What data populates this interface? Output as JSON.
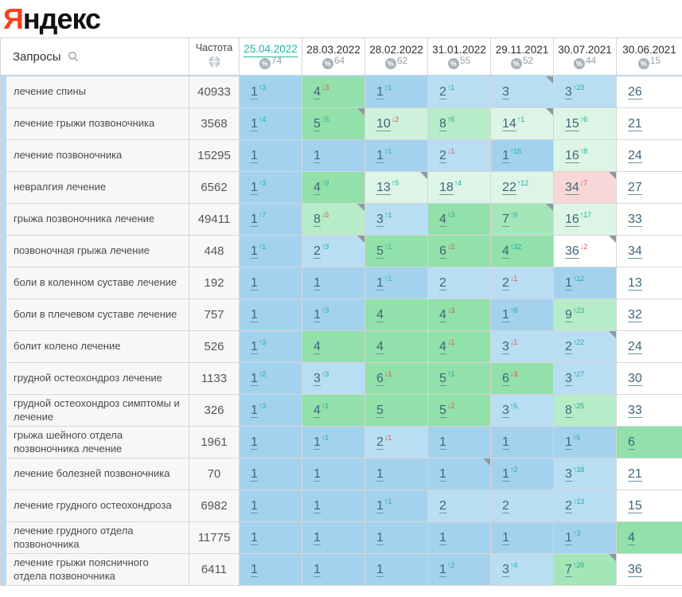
{
  "logo": {
    "first_letter": "Я",
    "rest": "ндекс"
  },
  "colors": {
    "logo_red": "#fc3f1d",
    "accent_teal": "#1fb5a1",
    "delta_up": "#1db3a2",
    "delta_down": "#e0584e",
    "cell_backgrounds": {
      "b1": "#a3d2ee",
      "b2": "#b9def4",
      "g4": "#92e0aa",
      "g7": "#a5e6b8",
      "g8": "#b7ecc8",
      "m10": "#cff1db",
      "m": "#ddf5e6",
      "pk": "#f8d8d6",
      "w": "#ffffff"
    }
  },
  "table": {
    "queries_header": "Запросы",
    "frequency_header": "Частота",
    "columns": [
      {
        "date": "25.04.2022",
        "visibility": "74",
        "selected": true
      },
      {
        "date": "28.03.2022",
        "visibility": "64",
        "selected": false
      },
      {
        "date": "28.02.2022",
        "visibility": "62",
        "selected": false
      },
      {
        "date": "31.01.2022",
        "visibility": "55",
        "selected": false
      },
      {
        "date": "29.11.2021",
        "visibility": "52",
        "selected": false
      },
      {
        "date": "30.07.2021",
        "visibility": "44",
        "selected": false
      },
      {
        "date": "30.06.2021",
        "visibility": "15",
        "selected": false
      }
    ],
    "rows": [
      {
        "keyword": "лечение спины",
        "frequency": "40933",
        "cells": [
          {
            "pos": "1",
            "delta": "3",
            "dir": "up",
            "bg": "b1"
          },
          {
            "pos": "4",
            "delta": "3",
            "dir": "down",
            "bg": "g4"
          },
          {
            "pos": "1",
            "delta": "1",
            "dir": "up",
            "bg": "b1"
          },
          {
            "pos": "2",
            "delta": "1",
            "dir": "up",
            "bg": "b2"
          },
          {
            "pos": "3",
            "delta": "",
            "dir": "",
            "bg": "b2",
            "flag": true
          },
          {
            "pos": "3",
            "delta": "23",
            "dir": "up",
            "bg": "b2"
          },
          {
            "pos": "26",
            "delta": "",
            "dir": "",
            "bg": "w"
          }
        ]
      },
      {
        "keyword": "лечение грыжи позвоночника",
        "frequency": "3568",
        "cells": [
          {
            "pos": "1",
            "delta": "4",
            "dir": "up",
            "bg": "b1"
          },
          {
            "pos": "5",
            "delta": "5",
            "dir": "up",
            "bg": "g4",
            "flag": true
          },
          {
            "pos": "10",
            "delta": "2",
            "dir": "down",
            "bg": "m10"
          },
          {
            "pos": "8",
            "delta": "6",
            "dir": "up",
            "bg": "g8"
          },
          {
            "pos": "14",
            "delta": "1",
            "dir": "up",
            "bg": "m",
            "flag": true
          },
          {
            "pos": "15",
            "delta": "6",
            "dir": "up",
            "bg": "m"
          },
          {
            "pos": "21",
            "delta": "",
            "dir": "",
            "bg": "w"
          }
        ]
      },
      {
        "keyword": "лечение позвоночника",
        "frequency": "15295",
        "cells": [
          {
            "pos": "1",
            "delta": "",
            "dir": "",
            "bg": "b1"
          },
          {
            "pos": "1",
            "delta": "",
            "dir": "",
            "bg": "b1"
          },
          {
            "pos": "1",
            "delta": "1",
            "dir": "up",
            "bg": "b1"
          },
          {
            "pos": "2",
            "delta": "1",
            "dir": "down",
            "bg": "b2"
          },
          {
            "pos": "1",
            "delta": "15",
            "dir": "up",
            "bg": "b1"
          },
          {
            "pos": "16",
            "delta": "8",
            "dir": "up",
            "bg": "m"
          },
          {
            "pos": "24",
            "delta": "",
            "dir": "",
            "bg": "w"
          }
        ]
      },
      {
        "keyword": "невралгия лечение",
        "frequency": "6562",
        "cells": [
          {
            "pos": "1",
            "delta": "3",
            "dir": "up",
            "bg": "b1"
          },
          {
            "pos": "4",
            "delta": "9",
            "dir": "up",
            "bg": "g4"
          },
          {
            "pos": "13",
            "delta": "5",
            "dir": "up",
            "bg": "m",
            "flag": true
          },
          {
            "pos": "18",
            "delta": "4",
            "dir": "up",
            "bg": "m"
          },
          {
            "pos": "22",
            "delta": "12",
            "dir": "up",
            "bg": "m"
          },
          {
            "pos": "34",
            "delta": "7",
            "dir": "down",
            "bg": "pk",
            "flag": true
          },
          {
            "pos": "27",
            "delta": "",
            "dir": "",
            "bg": "w"
          }
        ]
      },
      {
        "keyword": "грыжа позвоночника лечение",
        "frequency": "49411",
        "cells": [
          {
            "pos": "1",
            "delta": "7",
            "dir": "up",
            "bg": "b1"
          },
          {
            "pos": "8",
            "delta": "5",
            "dir": "down",
            "bg": "g8",
            "flag": true
          },
          {
            "pos": "3",
            "delta": "1",
            "dir": "up",
            "bg": "b2"
          },
          {
            "pos": "4",
            "delta": "3",
            "dir": "up",
            "bg": "g4"
          },
          {
            "pos": "7",
            "delta": "9",
            "dir": "up",
            "bg": "g7",
            "flag": true
          },
          {
            "pos": "16",
            "delta": "17",
            "dir": "up",
            "bg": "m"
          },
          {
            "pos": "33",
            "delta": "",
            "dir": "",
            "bg": "w"
          }
        ]
      },
      {
        "keyword": "позвоночная грыжа лечение",
        "frequency": "448",
        "cells": [
          {
            "pos": "1",
            "delta": "1",
            "dir": "up",
            "bg": "b1"
          },
          {
            "pos": "2",
            "delta": "3",
            "dir": "up",
            "bg": "b2",
            "flag": true
          },
          {
            "pos": "5",
            "delta": "1",
            "dir": "up",
            "bg": "g4"
          },
          {
            "pos": "6",
            "delta": "2",
            "dir": "down",
            "bg": "g4"
          },
          {
            "pos": "4",
            "delta": "32",
            "dir": "up",
            "bg": "g4"
          },
          {
            "pos": "36",
            "delta": "2",
            "dir": "down",
            "bg": "w",
            "flag": true
          },
          {
            "pos": "34",
            "delta": "",
            "dir": "",
            "bg": "w"
          }
        ]
      },
      {
        "keyword": "боли в коленном суставе лечение",
        "frequency": "192",
        "cells": [
          {
            "pos": "1",
            "delta": "",
            "dir": "",
            "bg": "b1"
          },
          {
            "pos": "1",
            "delta": "",
            "dir": "",
            "bg": "b1"
          },
          {
            "pos": "1",
            "delta": "1",
            "dir": "up",
            "bg": "b1"
          },
          {
            "pos": "2",
            "delta": "",
            "dir": "",
            "bg": "b2"
          },
          {
            "pos": "2",
            "delta": "1",
            "dir": "down",
            "bg": "b2"
          },
          {
            "pos": "1",
            "delta": "12",
            "dir": "up",
            "bg": "b1"
          },
          {
            "pos": "13",
            "delta": "",
            "dir": "",
            "bg": "w"
          }
        ]
      },
      {
        "keyword": "боли в плечевом суставе лечение",
        "frequency": "757",
        "cells": [
          {
            "pos": "1",
            "delta": "",
            "dir": "",
            "bg": "b1"
          },
          {
            "pos": "1",
            "delta": "3",
            "dir": "up",
            "bg": "b1"
          },
          {
            "pos": "4",
            "delta": "",
            "dir": "",
            "bg": "g4"
          },
          {
            "pos": "4",
            "delta": "3",
            "dir": "down",
            "bg": "g4"
          },
          {
            "pos": "1",
            "delta": "8",
            "dir": "up",
            "bg": "b1"
          },
          {
            "pos": "9",
            "delta": "23",
            "dir": "up",
            "bg": "g8"
          },
          {
            "pos": "32",
            "delta": "",
            "dir": "",
            "bg": "w"
          }
        ]
      },
      {
        "keyword": "болит колено лечение",
        "frequency": "526",
        "cells": [
          {
            "pos": "1",
            "delta": "3",
            "dir": "up",
            "bg": "b1"
          },
          {
            "pos": "4",
            "delta": "",
            "dir": "",
            "bg": "g4"
          },
          {
            "pos": "4",
            "delta": "",
            "dir": "",
            "bg": "g4"
          },
          {
            "pos": "4",
            "delta": "1",
            "dir": "down",
            "bg": "g4"
          },
          {
            "pos": "3",
            "delta": "1",
            "dir": "down",
            "bg": "b2"
          },
          {
            "pos": "2",
            "delta": "22",
            "dir": "up",
            "bg": "b2",
            "flag": true
          },
          {
            "pos": "24",
            "delta": "",
            "dir": "",
            "bg": "w"
          }
        ]
      },
      {
        "keyword": "грудной остеохондроз лечение",
        "frequency": "1133",
        "cells": [
          {
            "pos": "1",
            "delta": "2",
            "dir": "up",
            "bg": "b1"
          },
          {
            "pos": "3",
            "delta": "3",
            "dir": "up",
            "bg": "b2"
          },
          {
            "pos": "6",
            "delta": "1",
            "dir": "down",
            "bg": "g4"
          },
          {
            "pos": "5",
            "delta": "1",
            "dir": "up",
            "bg": "g4"
          },
          {
            "pos": "6",
            "delta": "3",
            "dir": "down",
            "bg": "g4"
          },
          {
            "pos": "3",
            "delta": "27",
            "dir": "up",
            "bg": "b2"
          },
          {
            "pos": "30",
            "delta": "",
            "dir": "",
            "bg": "w"
          }
        ]
      },
      {
        "keyword": "грудной остеохондроз симптомы и лечение",
        "frequency": "326",
        "cells": [
          {
            "pos": "1",
            "delta": "3",
            "dir": "up",
            "bg": "b1"
          },
          {
            "pos": "4",
            "delta": "1",
            "dir": "up",
            "bg": "g4"
          },
          {
            "pos": "5",
            "delta": "",
            "dir": "",
            "bg": "g4"
          },
          {
            "pos": "5",
            "delta": "2",
            "dir": "down",
            "bg": "g4"
          },
          {
            "pos": "3",
            "delta": "5",
            "dir": "up",
            "bg": "b2"
          },
          {
            "pos": "8",
            "delta": "25",
            "dir": "up",
            "bg": "g8"
          },
          {
            "pos": "33",
            "delta": "",
            "dir": "",
            "bg": "w"
          }
        ]
      },
      {
        "keyword": "грыжа шейного отдела позвоночника лечение",
        "frequency": "1961",
        "cells": [
          {
            "pos": "1",
            "delta": "",
            "dir": "",
            "bg": "b1"
          },
          {
            "pos": "1",
            "delta": "1",
            "dir": "up",
            "bg": "b1"
          },
          {
            "pos": "2",
            "delta": "1",
            "dir": "down",
            "bg": "b2"
          },
          {
            "pos": "1",
            "delta": "",
            "dir": "",
            "bg": "b1"
          },
          {
            "pos": "1",
            "delta": "",
            "dir": "",
            "bg": "b1"
          },
          {
            "pos": "1",
            "delta": "5",
            "dir": "up",
            "bg": "b1"
          },
          {
            "pos": "6",
            "delta": "",
            "dir": "",
            "bg": "g4"
          }
        ]
      },
      {
        "keyword": "лечение болезней позвоночника",
        "frequency": "70",
        "cells": [
          {
            "pos": "1",
            "delta": "",
            "dir": "",
            "bg": "b1"
          },
          {
            "pos": "1",
            "delta": "",
            "dir": "",
            "bg": "b1"
          },
          {
            "pos": "1",
            "delta": "",
            "dir": "",
            "bg": "b1"
          },
          {
            "pos": "1",
            "delta": "",
            "dir": "",
            "bg": "b1",
            "flag": true
          },
          {
            "pos": "1",
            "delta": "2",
            "dir": "up",
            "bg": "b1"
          },
          {
            "pos": "3",
            "delta": "18",
            "dir": "up",
            "bg": "b2"
          },
          {
            "pos": "21",
            "delta": "",
            "dir": "",
            "bg": "w"
          }
        ]
      },
      {
        "keyword": "лечение грудного остеохондроза",
        "frequency": "6982",
        "cells": [
          {
            "pos": "1",
            "delta": "",
            "dir": "",
            "bg": "b1"
          },
          {
            "pos": "1",
            "delta": "",
            "dir": "",
            "bg": "b1"
          },
          {
            "pos": "1",
            "delta": "1",
            "dir": "up",
            "bg": "b1"
          },
          {
            "pos": "2",
            "delta": "",
            "dir": "",
            "bg": "b2"
          },
          {
            "pos": "2",
            "delta": "",
            "dir": "",
            "bg": "b2"
          },
          {
            "pos": "2",
            "delta": "13",
            "dir": "up",
            "bg": "b2"
          },
          {
            "pos": "15",
            "delta": "",
            "dir": "",
            "bg": "w"
          }
        ]
      },
      {
        "keyword": "лечение грудного отдела позвоночника",
        "frequency": "11775",
        "cells": [
          {
            "pos": "1",
            "delta": "",
            "dir": "",
            "bg": "b1"
          },
          {
            "pos": "1",
            "delta": "",
            "dir": "",
            "bg": "b1"
          },
          {
            "pos": "1",
            "delta": "",
            "dir": "",
            "bg": "b1"
          },
          {
            "pos": "1",
            "delta": "",
            "dir": "",
            "bg": "b1"
          },
          {
            "pos": "1",
            "delta": "",
            "dir": "",
            "bg": "b1"
          },
          {
            "pos": "1",
            "delta": "3",
            "dir": "up",
            "bg": "b1"
          },
          {
            "pos": "4",
            "delta": "",
            "dir": "",
            "bg": "g4"
          }
        ]
      },
      {
        "keyword": "лечение грыжи поясничного отдела позвоночника",
        "frequency": "6411",
        "cells": [
          {
            "pos": "1",
            "delta": "",
            "dir": "",
            "bg": "b1"
          },
          {
            "pos": "1",
            "delta": "",
            "dir": "",
            "bg": "b1"
          },
          {
            "pos": "1",
            "delta": "",
            "dir": "",
            "bg": "b1"
          },
          {
            "pos": "1",
            "delta": "2",
            "dir": "up",
            "bg": "b1"
          },
          {
            "pos": "3",
            "delta": "4",
            "dir": "up",
            "bg": "b2"
          },
          {
            "pos": "7",
            "delta": "29",
            "dir": "up",
            "bg": "g7",
            "flag": true
          },
          {
            "pos": "36",
            "delta": "",
            "dir": "",
            "bg": "w"
          }
        ]
      }
    ]
  }
}
